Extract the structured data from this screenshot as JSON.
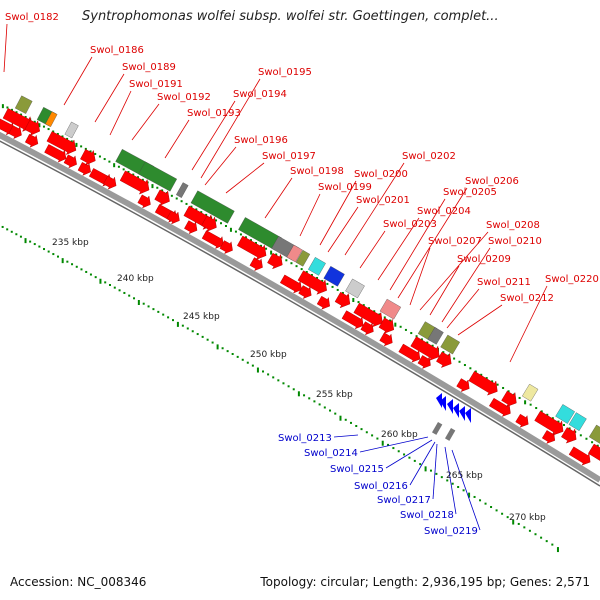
{
  "title": "Syntrophomonas wolfei subsp. wolfei str. Goettingen, complet...",
  "footer": {
    "accession": "Accession: NC_008346",
    "stats": "Topology: circular; Length: 2,936,195 bp; Genes: 2,571"
  },
  "colors": {
    "cds_forward": "#ff0000",
    "cds_reverse": "#0000ff",
    "label_forward": "#dd0000",
    "label_reverse": "#0000cc",
    "backbone": "#9a9a9a",
    "ticks": "#008800",
    "cog_green": "#2e8b2e",
    "cog_olive": "#8a9a3a",
    "cog_gray": "#777777",
    "cog_lightgray": "#cccccc",
    "cog_pink": "#f08a8a",
    "cog_cyan": "#33dddd",
    "cog_blue": "#1133dd",
    "cog_khaki": "#eee8a0",
    "cog_orange": "#ff8800"
  },
  "kbp_labels": [
    "235 kbp",
    "240 kbp",
    "245 kbp",
    "250 kbp",
    "255 kbp",
    "260 kbp",
    "265 kbp",
    "270 kbp"
  ],
  "forward_genes": [
    "Swol_0182",
    "Swol_0186",
    "Swol_0189",
    "Swol_0191",
    "Swol_0192",
    "Swol_0193",
    "Swol_0194",
    "Swol_0195",
    "Swol_0196",
    "Swol_0197",
    "Swol_0198",
    "Swol_0199",
    "Swol_0200",
    "Swol_0201",
    "Swol_0202",
    "Swol_0203",
    "Swol_0204",
    "Swol_0205",
    "Swol_0206",
    "Swol_0207",
    "Swol_0208",
    "Swol_0209",
    "Swol_0210",
    "Swol_0211",
    "Swol_0212",
    "Swol_0220"
  ],
  "reverse_genes": [
    "Swol_0213",
    "Swol_0214",
    "Swol_0215",
    "Swol_0216",
    "Swol_0217",
    "Swol_0218",
    "Swol_0219"
  ]
}
